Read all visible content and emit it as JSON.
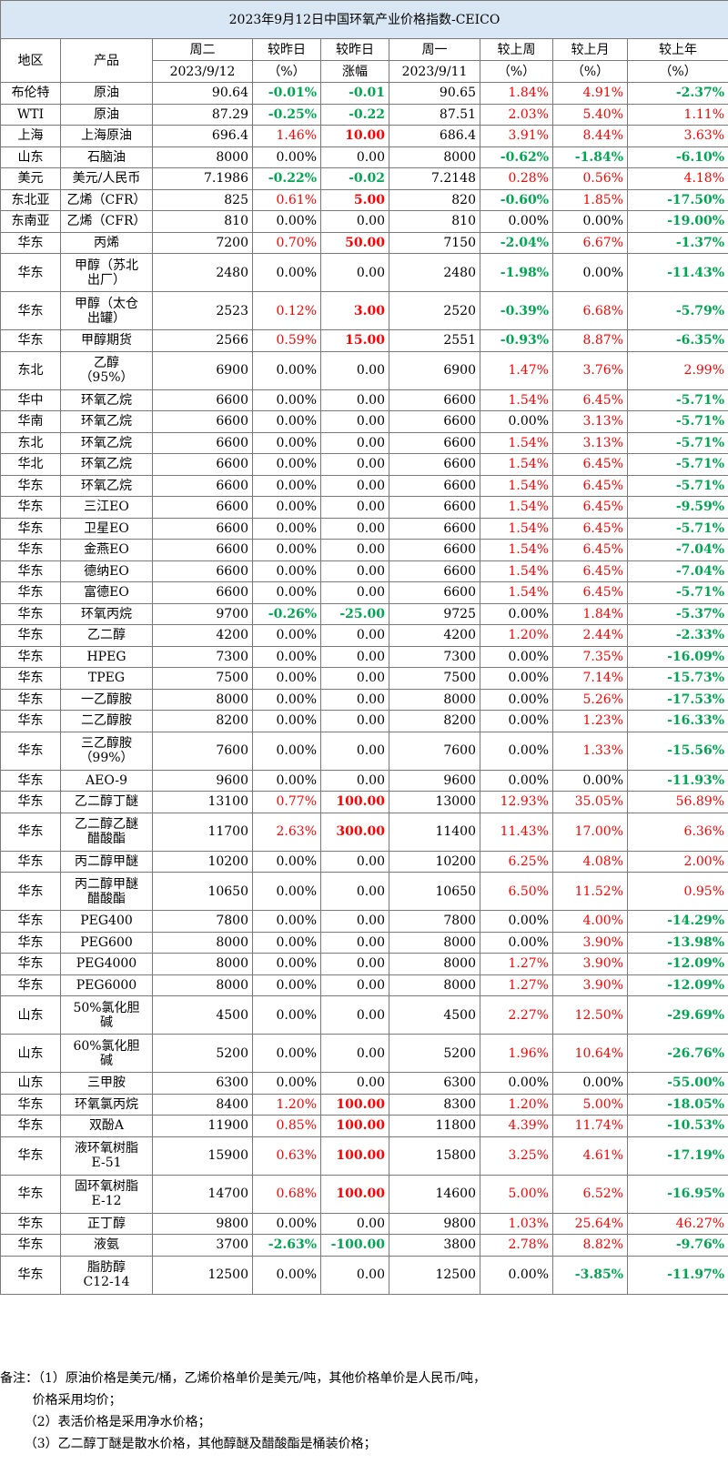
{
  "title": "2023年9月12日中国环氧产业价格指数-CEICO",
  "headers": {
    "region": "地区",
    "product": "产品",
    "today": "周二",
    "today_date": "2023/9/12",
    "dod_pct": "较昨日",
    "dod_pct_unit": "（%）",
    "dod_chg": "较昨日",
    "dod_chg_unit": "涨幅",
    "prev": "周一",
    "prev_date": "2023/9/11",
    "wow": "较上周",
    "wow_unit": "（%）",
    "mom": "较上月",
    "mom_unit": "（%）",
    "yoy": "较上年",
    "yoy_unit": "（%）"
  },
  "rows": [
    {
      "region": "布伦特",
      "product": "原油",
      "today": "90.64",
      "dod_pct": "-0.01%",
      "dod_chg": "-0.01",
      "prev": "90.65",
      "wow": "1.84%",
      "mom": "4.91%",
      "yoy": "-2.37%"
    },
    {
      "region": "WTI",
      "product": "原油",
      "today": "87.29",
      "dod_pct": "-0.25%",
      "dod_chg": "-0.22",
      "prev": "87.51",
      "wow": "2.03%",
      "mom": "5.40%",
      "yoy": "1.11%"
    },
    {
      "region": "上海",
      "product": "上海原油",
      "today": "696.4",
      "dod_pct": "1.46%",
      "dod_chg": "10.00",
      "prev": "686.4",
      "wow": "3.91%",
      "mom": "8.44%",
      "yoy": "3.63%"
    },
    {
      "region": "山东",
      "product": "石脑油",
      "today": "8000",
      "dod_pct": "0.00%",
      "dod_chg": "0.00",
      "prev": "8000",
      "wow": "-0.62%",
      "mom": "-1.84%",
      "yoy": "-6.10%"
    },
    {
      "region": "美元",
      "product": "美元/人民币",
      "today": "7.1986",
      "dod_pct": "-0.22%",
      "dod_chg": "-0.02",
      "prev": "7.2148",
      "wow": "0.28%",
      "mom": "0.56%",
      "yoy": "4.18%"
    },
    {
      "region": "东北亚",
      "product": "乙烯（CFR）",
      "today": "825",
      "dod_pct": "0.61%",
      "dod_chg": "5.00",
      "prev": "820",
      "wow": "-0.60%",
      "mom": "1.85%",
      "yoy": "-17.50%"
    },
    {
      "region": "东南亚",
      "product": "乙烯（CFR）",
      "today": "810",
      "dod_pct": "0.00%",
      "dod_chg": "0.00",
      "prev": "810",
      "wow": "0.00%",
      "mom": "0.00%",
      "yoy": "-19.00%"
    },
    {
      "region": "华东",
      "product": "丙烯",
      "today": "7200",
      "dod_pct": "0.70%",
      "dod_chg": "50.00",
      "prev": "7150",
      "wow": "-2.04%",
      "mom": "6.67%",
      "yoy": "-1.37%"
    },
    {
      "region": "华东",
      "product": "甲醇（苏北\n出厂）",
      "today": "2480",
      "dod_pct": "0.00%",
      "dod_chg": "0.00",
      "prev": "2480",
      "wow": "-1.98%",
      "mom": "0.00%",
      "yoy": "-11.43%"
    },
    {
      "region": "华东",
      "product": "甲醇（太仓\n出罐）",
      "today": "2523",
      "dod_pct": "0.12%",
      "dod_chg": "3.00",
      "prev": "2520",
      "wow": "-0.39%",
      "mom": "6.68%",
      "yoy": "-5.79%"
    },
    {
      "region": "华东",
      "product": "甲醇期货",
      "today": "2566",
      "dod_pct": "0.59%",
      "dod_chg": "15.00",
      "prev": "2551",
      "wow": "-0.93%",
      "mom": "8.87%",
      "yoy": "-6.35%"
    },
    {
      "region": "东北",
      "product": "乙醇\n（95%）",
      "today": "6900",
      "dod_pct": "0.00%",
      "dod_chg": "0.00",
      "prev": "6900",
      "wow": "1.47%",
      "mom": "3.76%",
      "yoy": "2.99%"
    },
    {
      "region": "华中",
      "product": "环氧乙烷",
      "today": "6600",
      "dod_pct": "0.00%",
      "dod_chg": "0.00",
      "prev": "6600",
      "wow": "1.54%",
      "mom": "6.45%",
      "yoy": "-5.71%"
    },
    {
      "region": "华南",
      "product": "环氧乙烷",
      "today": "6600",
      "dod_pct": "0.00%",
      "dod_chg": "0.00",
      "prev": "6600",
      "wow": "0.00%",
      "mom": "3.13%",
      "yoy": "-5.71%"
    },
    {
      "region": "东北",
      "product": "环氧乙烷",
      "today": "6600",
      "dod_pct": "0.00%",
      "dod_chg": "0.00",
      "prev": "6600",
      "wow": "1.54%",
      "mom": "3.13%",
      "yoy": "-5.71%"
    },
    {
      "region": "华北",
      "product": "环氧乙烷",
      "today": "6600",
      "dod_pct": "0.00%",
      "dod_chg": "0.00",
      "prev": "6600",
      "wow": "1.54%",
      "mom": "6.45%",
      "yoy": "-5.71%"
    },
    {
      "region": "华东",
      "product": "环氧乙烷",
      "today": "6600",
      "dod_pct": "0.00%",
      "dod_chg": "0.00",
      "prev": "6600",
      "wow": "1.54%",
      "mom": "6.45%",
      "yoy": "-5.71%"
    },
    {
      "region": "华东",
      "product": "三江EO",
      "today": "6600",
      "dod_pct": "0.00%",
      "dod_chg": "0.00",
      "prev": "6600",
      "wow": "1.54%",
      "mom": "6.45%",
      "yoy": "-9.59%"
    },
    {
      "region": "华东",
      "product": "卫星EO",
      "today": "6600",
      "dod_pct": "0.00%",
      "dod_chg": "0.00",
      "prev": "6600",
      "wow": "1.54%",
      "mom": "6.45%",
      "yoy": "-5.71%"
    },
    {
      "region": "华东",
      "product": "金燕EO",
      "today": "6600",
      "dod_pct": "0.00%",
      "dod_chg": "0.00",
      "prev": "6600",
      "wow": "1.54%",
      "mom": "6.45%",
      "yoy": "-7.04%"
    },
    {
      "region": "华东",
      "product": "德纳EO",
      "today": "6600",
      "dod_pct": "0.00%",
      "dod_chg": "0.00",
      "prev": "6600",
      "wow": "1.54%",
      "mom": "6.45%",
      "yoy": "-7.04%"
    },
    {
      "region": "华东",
      "product": "富德EO",
      "today": "6600",
      "dod_pct": "0.00%",
      "dod_chg": "0.00",
      "prev": "6600",
      "wow": "1.54%",
      "mom": "6.45%",
      "yoy": "-5.71%"
    },
    {
      "region": "华东",
      "product": "环氧丙烷",
      "today": "9700",
      "dod_pct": "-0.26%",
      "dod_chg": "-25.00",
      "prev": "9725",
      "wow": "0.00%",
      "mom": "1.84%",
      "yoy": "-5.37%"
    },
    {
      "region": "华东",
      "product": "乙二醇",
      "today": "4200",
      "dod_pct": "0.00%",
      "dod_chg": "0.00",
      "prev": "4200",
      "wow": "1.20%",
      "mom": "2.44%",
      "yoy": "-2.33%"
    },
    {
      "region": "华东",
      "product": "HPEG",
      "today": "7300",
      "dod_pct": "0.00%",
      "dod_chg": "0.00",
      "prev": "7300",
      "wow": "0.00%",
      "mom": "7.35%",
      "yoy": "-16.09%"
    },
    {
      "region": "华东",
      "product": "TPEG",
      "today": "7500",
      "dod_pct": "0.00%",
      "dod_chg": "0.00",
      "prev": "7500",
      "wow": "0.00%",
      "mom": "7.14%",
      "yoy": "-15.73%"
    },
    {
      "region": "华东",
      "product": "一乙醇胺",
      "today": "8000",
      "dod_pct": "0.00%",
      "dod_chg": "0.00",
      "prev": "8000",
      "wow": "0.00%",
      "mom": "5.26%",
      "yoy": "-17.53%"
    },
    {
      "region": "华东",
      "product": "二乙醇胺",
      "today": "8200",
      "dod_pct": "0.00%",
      "dod_chg": "0.00",
      "prev": "8200",
      "wow": "0.00%",
      "mom": "1.23%",
      "yoy": "-16.33%"
    },
    {
      "region": "华东",
      "product": "三乙醇胺\n（99%）",
      "today": "7600",
      "dod_pct": "0.00%",
      "dod_chg": "0.00",
      "prev": "7600",
      "wow": "0.00%",
      "mom": "1.33%",
      "yoy": "-15.56%"
    },
    {
      "region": "华东",
      "product": "AEO-9",
      "today": "9600",
      "dod_pct": "0.00%",
      "dod_chg": "0.00",
      "prev": "9600",
      "wow": "0.00%",
      "mom": "0.00%",
      "yoy": "-11.93%"
    },
    {
      "region": "华东",
      "product": "乙二醇丁醚",
      "today": "13100",
      "dod_pct": "0.77%",
      "dod_chg": "100.00",
      "prev": "13000",
      "wow": "12.93%",
      "mom": "35.05%",
      "yoy": "56.89%"
    },
    {
      "region": "华东",
      "product": "乙二醇乙醚\n醋酸酯",
      "today": "11700",
      "dod_pct": "2.63%",
      "dod_chg": "300.00",
      "prev": "11400",
      "wow": "11.43%",
      "mom": "17.00%",
      "yoy": "6.36%"
    },
    {
      "region": "华东",
      "product": "丙二醇甲醚",
      "today": "10200",
      "dod_pct": "0.00%",
      "dod_chg": "0.00",
      "prev": "10200",
      "wow": "6.25%",
      "mom": "4.08%",
      "yoy": "2.00%"
    },
    {
      "region": "华东",
      "product": "丙二醇甲醚\n醋酸酯",
      "today": "10650",
      "dod_pct": "0.00%",
      "dod_chg": "0.00",
      "prev": "10650",
      "wow": "6.50%",
      "mom": "11.52%",
      "yoy": "0.95%"
    },
    {
      "region": "华东",
      "product": "PEG400",
      "today": "7800",
      "dod_pct": "0.00%",
      "dod_chg": "0.00",
      "prev": "7800",
      "wow": "0.00%",
      "mom": "4.00%",
      "yoy": "-14.29%"
    },
    {
      "region": "华东",
      "product": "PEG600",
      "today": "8000",
      "dod_pct": "0.00%",
      "dod_chg": "0.00",
      "prev": "8000",
      "wow": "0.00%",
      "mom": "3.90%",
      "yoy": "-13.98%"
    },
    {
      "region": "华东",
      "product": "PEG4000",
      "today": "8000",
      "dod_pct": "0.00%",
      "dod_chg": "0.00",
      "prev": "8000",
      "wow": "1.27%",
      "mom": "3.90%",
      "yoy": "-12.09%"
    },
    {
      "region": "华东",
      "product": "PEG6000",
      "today": "8000",
      "dod_pct": "0.00%",
      "dod_chg": "0.00",
      "prev": "8000",
      "wow": "1.27%",
      "mom": "3.90%",
      "yoy": "-12.09%"
    },
    {
      "region": "山东",
      "product": "50%氯化胆\n碱",
      "today": "4500",
      "dod_pct": "0.00%",
      "dod_chg": "0.00",
      "prev": "4500",
      "wow": "2.27%",
      "mom": "12.50%",
      "yoy": "-29.69%"
    },
    {
      "region": "山东",
      "product": "60%氯化胆\n碱",
      "today": "5200",
      "dod_pct": "0.00%",
      "dod_chg": "0.00",
      "prev": "5200",
      "wow": "1.96%",
      "mom": "10.64%",
      "yoy": "-26.76%"
    },
    {
      "region": "山东",
      "product": "三甲胺",
      "today": "6300",
      "dod_pct": "0.00%",
      "dod_chg": "0.00",
      "prev": "6300",
      "wow": "0.00%",
      "mom": "0.00%",
      "yoy": "-55.00%"
    },
    {
      "region": "华东",
      "product": "环氧氯丙烷",
      "today": "8400",
      "dod_pct": "1.20%",
      "dod_chg": "100.00",
      "prev": "8300",
      "wow": "1.20%",
      "mom": "5.00%",
      "yoy": "-18.05%"
    },
    {
      "region": "华东",
      "product": "双酚A",
      "today": "11900",
      "dod_pct": "0.85%",
      "dod_chg": "100.00",
      "prev": "11800",
      "wow": "4.39%",
      "mom": "11.74%",
      "yoy": "-10.53%"
    },
    {
      "region": "华东",
      "product": "液环氧树脂\nE-51",
      "today": "15900",
      "dod_pct": "0.63%",
      "dod_chg": "100.00",
      "prev": "15800",
      "wow": "3.25%",
      "mom": "4.61%",
      "yoy": "-17.19%"
    },
    {
      "region": "华东",
      "product": "固环氧树脂\nE-12",
      "today": "14700",
      "dod_pct": "0.68%",
      "dod_chg": "100.00",
      "prev": "14600",
      "wow": "5.00%",
      "mom": "6.52%",
      "yoy": "-16.95%"
    },
    {
      "region": "华东",
      "product": "正丁醇",
      "today": "9800",
      "dod_pct": "0.00%",
      "dod_chg": "0.00",
      "prev": "9800",
      "wow": "1.03%",
      "mom": "25.64%",
      "yoy": "46.27%"
    },
    {
      "region": "华东",
      "product": "液氨",
      "today": "3700",
      "dod_pct": "-2.63%",
      "dod_chg": "-100.00",
      "prev": "3800",
      "wow": "2.78%",
      "mom": "8.82%",
      "yoy": "-9.76%"
    },
    {
      "region": "华东",
      "product": "脂肪醇\nC12-14",
      "today": "12500",
      "dod_pct": "0.00%",
      "dod_chg": "0.00",
      "prev": "12500",
      "wow": "0.00%",
      "mom": "-3.85%",
      "yoy": "-11.97%"
    }
  ],
  "notes": [
    "备注：（1）原油价格是美元/桶，乙烯价格单价是美元/吨，其他价格单价是人民币/吨，",
    "        价格采用均价；",
    "      （2）表活价格是采用净水价格；",
    "      （3）乙二醇丁醚是散水价格，其他醇醚及醋酸酯是桶装价格；"
  ],
  "colors": {
    "up": "#ff0000",
    "down": "#00a651",
    "title_bg": "#d9e6f3",
    "border": "#7a7a7a"
  }
}
